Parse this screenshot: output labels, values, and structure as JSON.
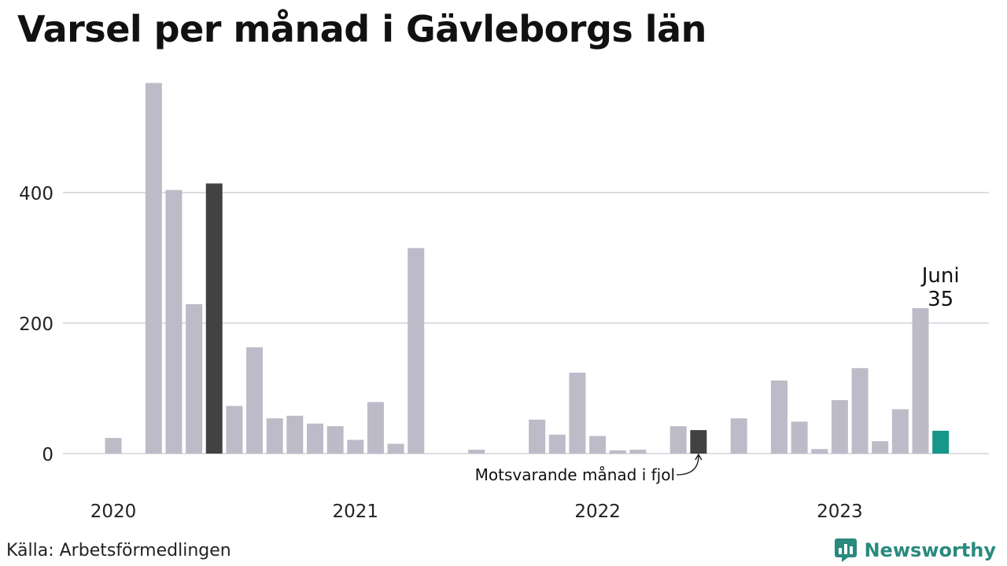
{
  "title": "Varsel per månad i Gävleborgs län",
  "source": "Källa: Arbetsförmedlingen",
  "brand": {
    "name": "Newsworthy",
    "icon": "newsworthy-logo-icon",
    "color": "#2a8a7e"
  },
  "colors": {
    "default": "#bebbc8",
    "comparison": "#424242",
    "highlight": "#17968a",
    "grid": "#dddde3"
  },
  "chart_data": {
    "type": "bar",
    "title": "Varsel per månad i Gävleborgs län",
    "xlabel": "",
    "ylabel": "",
    "ylim": [
      0,
      590
    ],
    "yticks": [
      0,
      200,
      400
    ],
    "grid": true,
    "year_labels": [
      {
        "label": "2020",
        "at_month": "2020-01"
      },
      {
        "label": "2021",
        "at_month": "2021-01"
      },
      {
        "label": "2022",
        "at_month": "2022-01"
      },
      {
        "label": "2023",
        "at_month": "2023-01"
      }
    ],
    "categories": [
      "2020-01",
      "2020-02",
      "2020-03",
      "2020-04",
      "2020-05",
      "2020-06",
      "2020-07",
      "2020-08",
      "2020-09",
      "2020-10",
      "2020-11",
      "2020-12",
      "2021-01",
      "2021-02",
      "2021-03",
      "2021-04",
      "2021-05",
      "2021-06",
      "2021-07",
      "2021-08",
      "2021-09",
      "2021-10",
      "2021-11",
      "2021-12",
      "2022-01",
      "2022-02",
      "2022-03",
      "2022-04",
      "2022-05",
      "2022-06",
      "2022-07",
      "2022-08",
      "2022-09",
      "2022-10",
      "2022-11",
      "2022-12",
      "2023-01",
      "2023-02",
      "2023-03",
      "2023-04",
      "2023-05",
      "2023-06"
    ],
    "values": [
      24,
      0,
      568,
      404,
      229,
      414,
      73,
      163,
      54,
      58,
      46,
      42,
      21,
      79,
      15,
      315,
      0,
      0,
      6,
      0,
      0,
      52,
      29,
      124,
      27,
      5,
      6,
      0,
      42,
      36,
      0,
      54,
      0,
      112,
      49,
      7,
      82,
      131,
      19,
      68,
      223,
      35
    ],
    "highlight": {
      "month": "2023-06",
      "label": "Juni",
      "value_label": "35"
    },
    "comparison_months": [
      "2020-06",
      "2021-06",
      "2022-06"
    ],
    "annotation": {
      "text": "Motsvarande månad i fjol",
      "month": "2022-06"
    }
  }
}
